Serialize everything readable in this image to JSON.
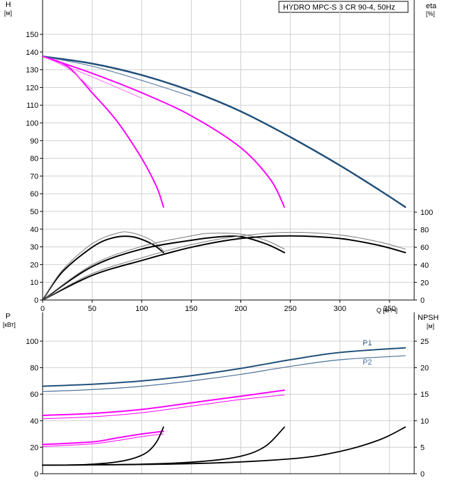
{
  "chart_data": [
    {
      "type": "line",
      "title": "HYDRO MPC-S 3 CR 90-4, 50Hz",
      "ylabel_left": "H",
      "yunit_left": "[м]",
      "ylabel_right": "eta",
      "yunit_right": "[%]",
      "xlabel": "Q [м³/ч]",
      "xlim": [
        0,
        375
      ],
      "ylim_left": [
        0,
        150
      ],
      "ylim_right": [
        0,
        100
      ],
      "x_ticks": [
        "0",
        "50",
        "100",
        "150",
        "200",
        "250",
        "300",
        "350"
      ],
      "y_ticks_left": [
        "0",
        "10",
        "20",
        "30",
        "40",
        "50",
        "60",
        "70",
        "80",
        "90",
        "100",
        "110",
        "120",
        "130",
        "140",
        "150"
      ],
      "y_ticks_right": [
        "0",
        "20",
        "40",
        "60",
        "80",
        "100"
      ],
      "grid": true,
      "series": [
        {
          "id": "H3",
          "axis": "left",
          "color": "#1f4e79",
          "width": 2.5,
          "points": [
            [
              0,
              137.5
            ],
            [
              50,
              133.5
            ],
            [
              100,
              127
            ],
            [
              150,
              118
            ],
            [
              200,
              106.5
            ],
            [
              250,
              92
            ],
            [
              300,
              76
            ],
            [
              340,
              62
            ],
            [
              366,
              52.5
            ]
          ]
        },
        {
          "id": "H3-thin",
          "axis": "left",
          "color": "#4a6f9a",
          "width": 1,
          "points": [
            [
              0,
              137.5
            ],
            [
              50,
              132
            ],
            [
              100,
              124
            ],
            [
              150,
              115
            ]
          ]
        },
        {
          "id": "H2",
          "axis": "left",
          "color": "#ff00ff",
          "width": 2,
          "points": [
            [
              0,
              137.5
            ],
            [
              50,
              128
            ],
            [
              100,
              117
            ],
            [
              150,
              104
            ],
            [
              200,
              86
            ],
            [
              230,
              68
            ],
            [
              244,
              52.5
            ]
          ]
        },
        {
          "id": "H2-thin",
          "axis": "left",
          "color": "#ff66ff",
          "width": 1,
          "points": [
            [
              0,
              137.5
            ],
            [
              50,
              126
            ],
            [
              100,
              114
            ]
          ]
        },
        {
          "id": "H1",
          "axis": "left",
          "color": "#ff00ff",
          "width": 2,
          "points": [
            [
              0,
              137.5
            ],
            [
              25,
              132
            ],
            [
              50,
              117
            ],
            [
              75,
              101
            ],
            [
              100,
              80
            ],
            [
              115,
              64
            ],
            [
              122,
              52.5
            ]
          ]
        },
        {
          "id": "H1-thin",
          "axis": "left",
          "color": "#ff66ff",
          "width": 1,
          "points": [
            [
              0,
              137.5
            ],
            [
              25,
              131
            ],
            [
              50,
              119
            ]
          ]
        },
        {
          "id": "eta1",
          "axis": "right",
          "color": "#000000",
          "width": 2,
          "points": [
            [
              0,
              0
            ],
            [
              20,
              32
            ],
            [
              50,
              60
            ],
            [
              70,
              70.5
            ],
            [
              90,
              72
            ],
            [
              110,
              64
            ],
            [
              122,
              54
            ]
          ]
        },
        {
          "id": "eta1-thin",
          "axis": "right",
          "color": "#777777",
          "width": 1,
          "points": [
            [
              0,
              0
            ],
            [
              20,
              34
            ],
            [
              50,
              64
            ],
            [
              75,
              76
            ],
            [
              90,
              76.5
            ],
            [
              110,
              68
            ],
            [
              122,
              56
            ]
          ]
        },
        {
          "id": "eta2",
          "axis": "right",
          "color": "#000000",
          "width": 2,
          "points": [
            [
              0,
              0
            ],
            [
              50,
              38
            ],
            [
              100,
              58
            ],
            [
              150,
              68
            ],
            [
              180,
              72
            ],
            [
              200,
              72
            ],
            [
              225,
              64
            ],
            [
              244,
              54
            ]
          ]
        },
        {
          "id": "eta2-thin",
          "axis": "right",
          "color": "#777777",
          "width": 1,
          "points": [
            [
              0,
              0
            ],
            [
              50,
              40
            ],
            [
              100,
              61
            ],
            [
              150,
              73
            ],
            [
              170,
              76
            ],
            [
              200,
              75
            ],
            [
              225,
              68
            ],
            [
              244,
              58
            ]
          ]
        },
        {
          "id": "eta3",
          "axis": "right",
          "color": "#000000",
          "width": 2,
          "points": [
            [
              0,
              0
            ],
            [
              50,
              28
            ],
            [
              100,
              45
            ],
            [
              150,
              60
            ],
            [
              200,
              70
            ],
            [
              250,
              73
            ],
            [
              300,
              70
            ],
            [
              340,
              62
            ],
            [
              366,
              54
            ]
          ]
        },
        {
          "id": "eta3-thin",
          "axis": "right",
          "color": "#777777",
          "width": 1,
          "points": [
            [
              0,
              0
            ],
            [
              50,
              30
            ],
            [
              100,
              48
            ],
            [
              150,
              63
            ],
            [
              200,
              73
            ],
            [
              250,
              77
            ],
            [
              300,
              74
            ],
            [
              340,
              66
            ],
            [
              366,
              58
            ]
          ]
        }
      ]
    },
    {
      "type": "line",
      "ylabel_left": "P",
      "yunit_left": "[кВт]",
      "ylabel_right": "NPSH",
      "yunit_right": "[м]",
      "xlim": [
        0,
        375
      ],
      "ylim_left": [
        0,
        110
      ],
      "ylim_right": [
        0,
        27.5
      ],
      "y_ticks_left": [
        "0",
        "20",
        "40",
        "60",
        "80",
        "100"
      ],
      "y_ticks_right": [
        "0",
        "5",
        "10",
        "15",
        "20",
        "25"
      ],
      "grid": true,
      "series_labels": [
        "P1",
        "P2"
      ],
      "series": [
        {
          "id": "P1-3",
          "axis": "left",
          "name": "P1",
          "color": "#1f4e79",
          "width": 2,
          "points": [
            [
              0,
              66
            ],
            [
              50,
              67.5
            ],
            [
              100,
              70
            ],
            [
              150,
              74
            ],
            [
              200,
              79.5
            ],
            [
              250,
              86
            ],
            [
              300,
              91.5
            ],
            [
              366,
              95
            ]
          ]
        },
        {
          "id": "P2-3",
          "axis": "left",
          "name": "P2",
          "color": "#4a6f9a",
          "width": 1.2,
          "points": [
            [
              0,
              62
            ],
            [
              50,
              63.5
            ],
            [
              100,
              66
            ],
            [
              150,
              70
            ],
            [
              200,
              75
            ],
            [
              250,
              81
            ],
            [
              300,
              86
            ],
            [
              366,
              89
            ]
          ]
        },
        {
          "id": "P1-2",
          "axis": "left",
          "color": "#ff00ff",
          "width": 2,
          "points": [
            [
              0,
              44
            ],
            [
              50,
              45.5
            ],
            [
              100,
              48.5
            ],
            [
              150,
              53.5
            ],
            [
              200,
              58.5
            ],
            [
              244,
              63
            ]
          ]
        },
        {
          "id": "P2-2",
          "axis": "left",
          "color": "#ff00ff",
          "width": 1,
          "points": [
            [
              0,
              41.5
            ],
            [
              50,
              43
            ],
            [
              100,
              46
            ],
            [
              150,
              51
            ],
            [
              200,
              56
            ],
            [
              244,
              59.5
            ]
          ]
        },
        {
          "id": "P1-1",
          "axis": "left",
          "color": "#ff00ff",
          "width": 2,
          "points": [
            [
              0,
              22
            ],
            [
              50,
              24
            ],
            [
              75,
              27
            ],
            [
              100,
              30
            ],
            [
              122,
              32
            ]
          ]
        },
        {
          "id": "P2-1",
          "axis": "left",
          "color": "#ff00ff",
          "width": 1,
          "points": [
            [
              0,
              20.5
            ],
            [
              50,
              22.5
            ],
            [
              75,
              25
            ],
            [
              100,
              28
            ],
            [
              122,
              30
            ]
          ]
        },
        {
          "id": "NPSH1",
          "axis": "right",
          "color": "#000000",
          "width": 1.8,
          "points": [
            [
              0,
              1.6
            ],
            [
              40,
              1.7
            ],
            [
              70,
              2.1
            ],
            [
              90,
              2.8
            ],
            [
              105,
              4
            ],
            [
              115,
              6
            ],
            [
              122,
              8.8
            ]
          ]
        },
        {
          "id": "NPSH2",
          "axis": "right",
          "color": "#000000",
          "width": 1.8,
          "points": [
            [
              0,
              1.6
            ],
            [
              100,
              1.8
            ],
            [
              160,
              2.3
            ],
            [
              200,
              3.3
            ],
            [
              225,
              5.2
            ],
            [
              244,
              8.8
            ]
          ]
        },
        {
          "id": "NPSH3",
          "axis": "right",
          "color": "#000000",
          "width": 1.8,
          "points": [
            [
              0,
              1.6
            ],
            [
              150,
              1.9
            ],
            [
              250,
              2.8
            ],
            [
              300,
              4.2
            ],
            [
              340,
              6.4
            ],
            [
              366,
              8.8
            ]
          ]
        }
      ]
    }
  ]
}
